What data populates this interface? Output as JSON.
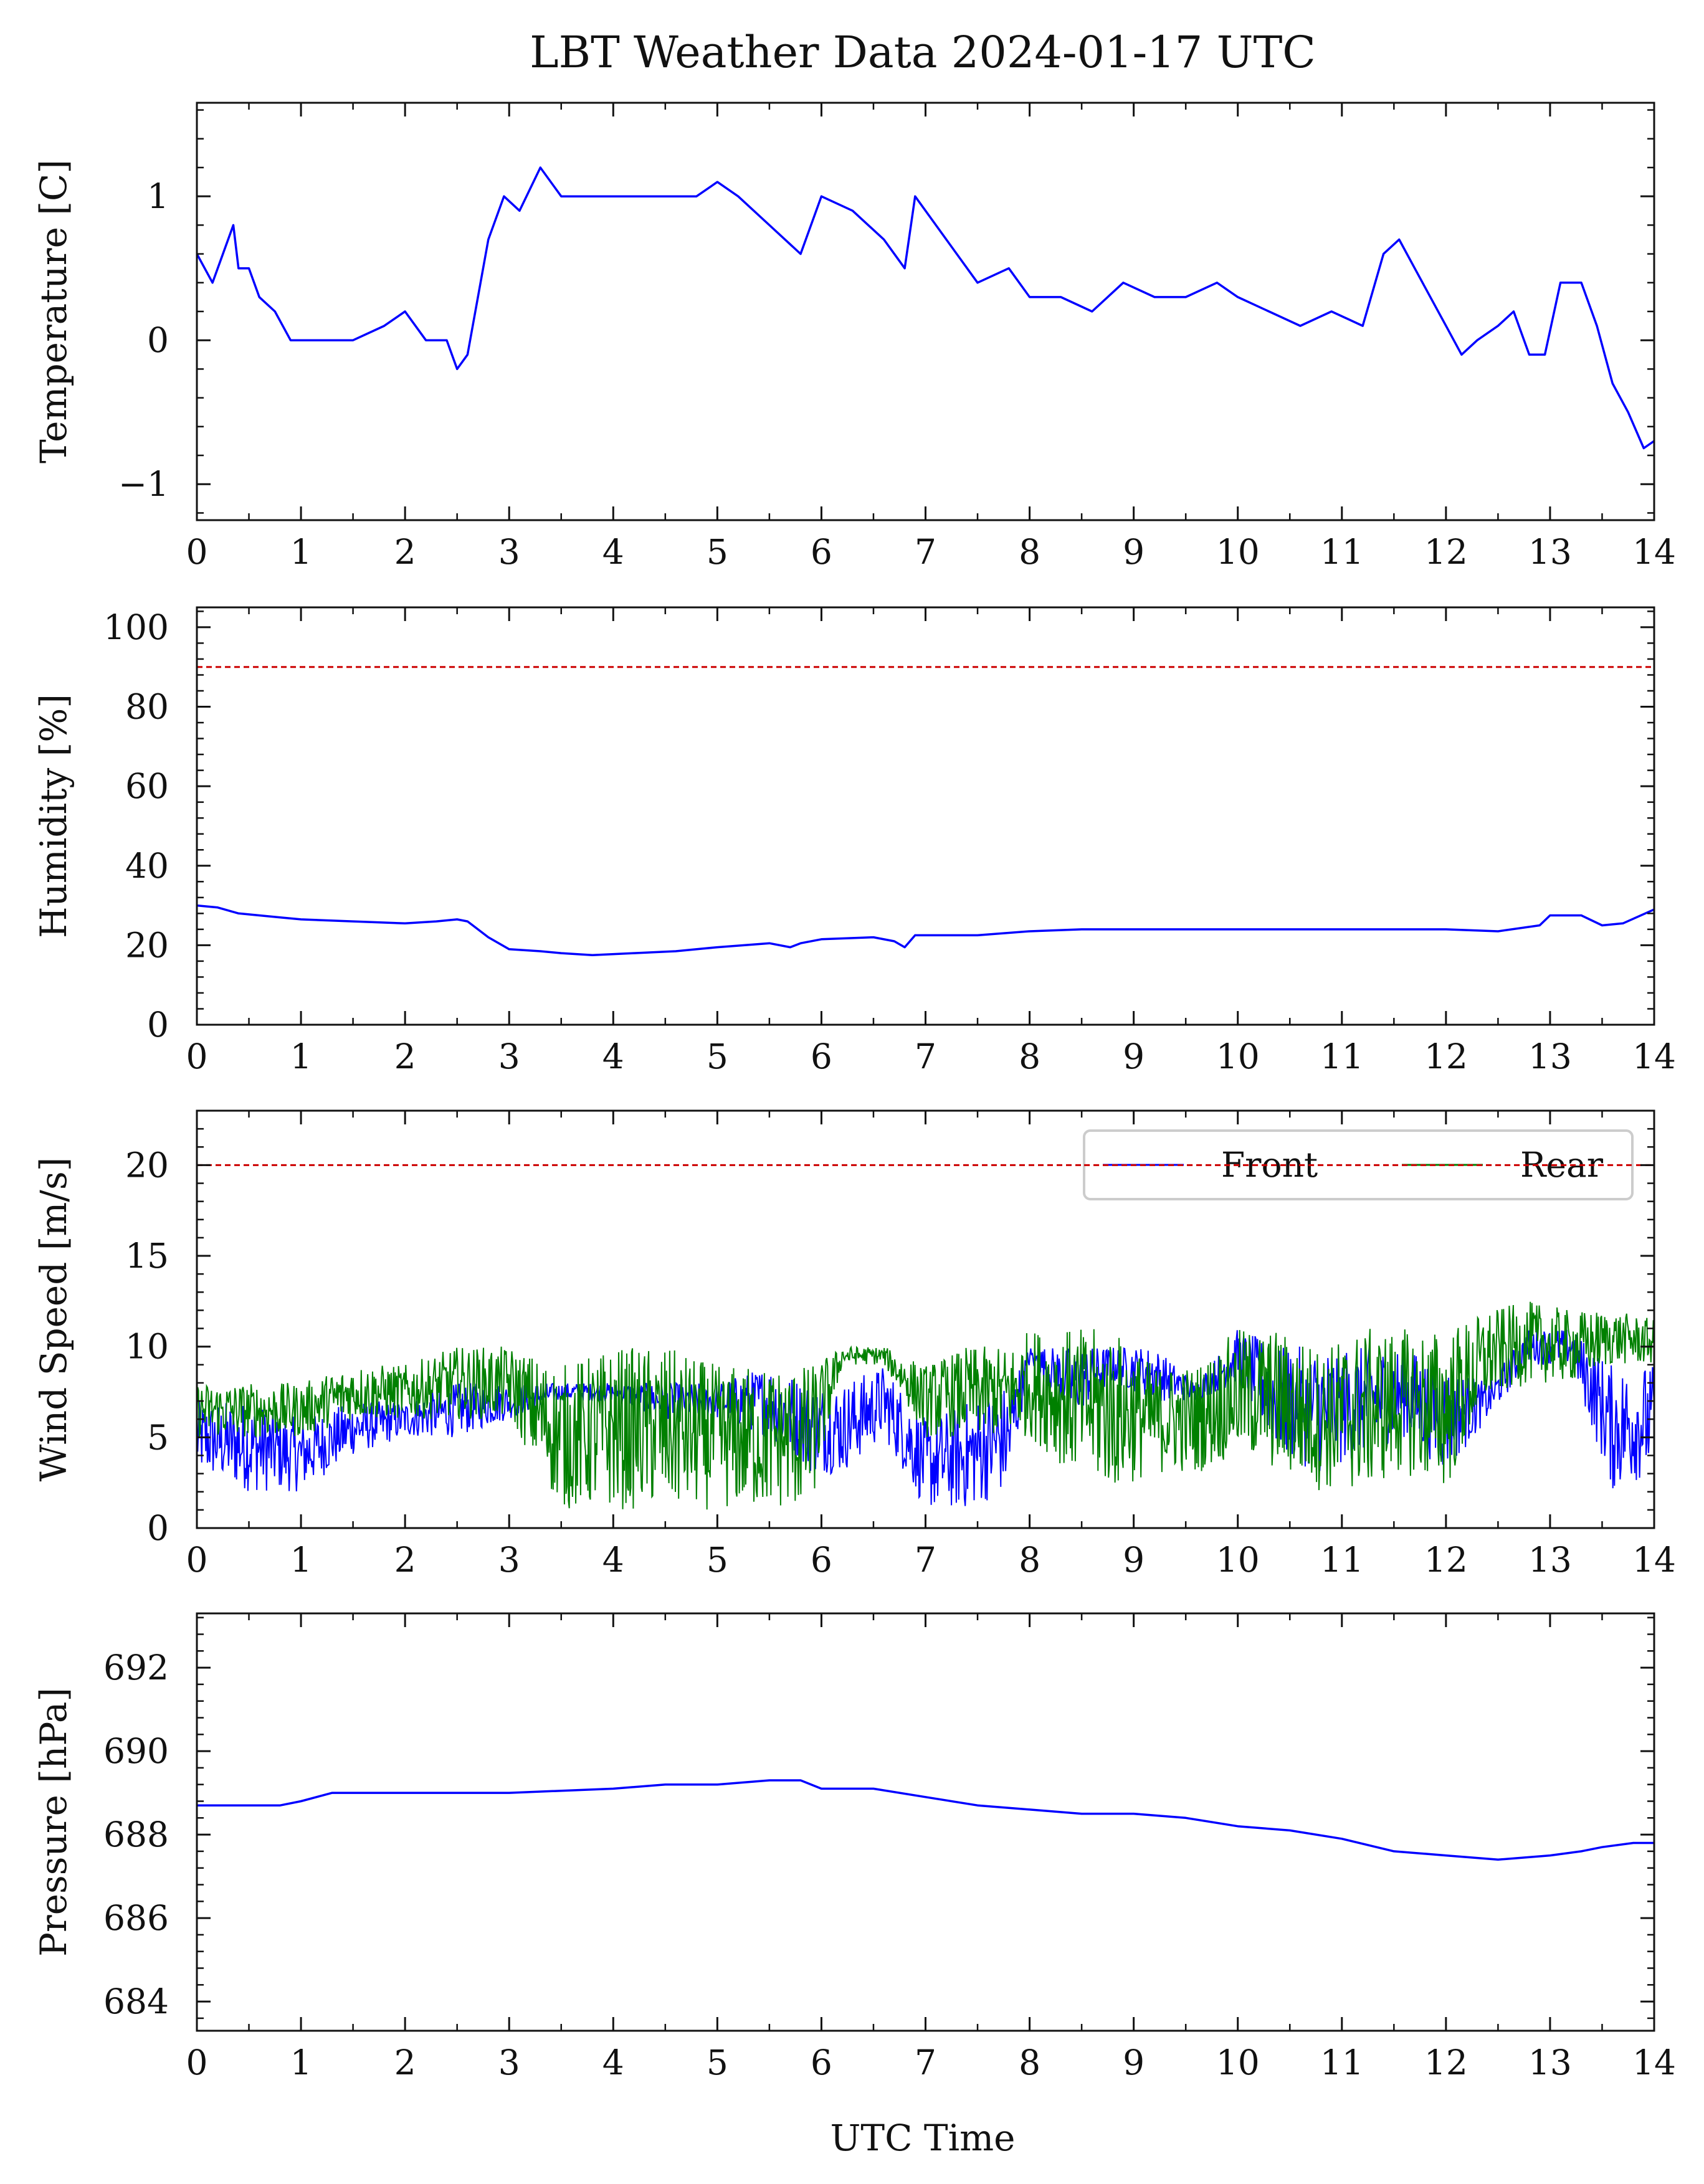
{
  "title": "LBT Weather Data 2024-01-17 UTC",
  "xlabel": "UTC Time",
  "colors": {
    "front": "#0000ff",
    "rear": "#008000",
    "threshold": "#cc0000",
    "axis": "#111111"
  },
  "chart_data": [
    {
      "type": "line",
      "ylabel": "Temperature [C]",
      "xlim": [
        0,
        14
      ],
      "ylim": [
        -1.25,
        1.65
      ],
      "x_ticks": [
        0,
        1,
        2,
        3,
        4,
        5,
        6,
        7,
        8,
        9,
        10,
        11,
        12,
        13,
        14
      ],
      "y_ticks": [
        -1,
        0,
        1
      ],
      "y_tick_labels": [
        "−1",
        "0",
        "1"
      ],
      "series": [
        {
          "color": "#0000ff",
          "x": [
            0,
            0.15,
            0.25,
            0.35,
            0.4,
            0.5,
            0.6,
            0.75,
            0.9,
            1.0,
            1.2,
            1.5,
            1.8,
            2.0,
            2.2,
            2.4,
            2.5,
            2.6,
            2.7,
            2.8,
            2.95,
            3.1,
            3.3,
            3.5,
            3.8,
            4.1,
            4.5,
            4.8,
            5.0,
            5.2,
            5.5,
            5.8,
            6.0,
            6.3,
            6.6,
            6.8,
            6.9,
            7.1,
            7.3,
            7.5,
            7.8,
            8.0,
            8.3,
            8.6,
            8.9,
            9.2,
            9.5,
            9.8,
            10.0,
            10.3,
            10.6,
            10.9,
            11.2,
            11.4,
            11.55,
            11.7,
            11.85,
            12.0,
            12.15,
            12.3,
            12.5,
            12.65,
            12.8,
            12.95,
            13.1,
            13.3,
            13.45,
            13.6,
            13.75,
            13.9,
            14.0
          ],
          "y": [
            0.6,
            0.4,
            0.6,
            0.8,
            0.5,
            0.5,
            0.3,
            0.2,
            0.0,
            0.0,
            0.0,
            0.0,
            0.1,
            0.2,
            0.0,
            0.0,
            -0.2,
            -0.1,
            0.3,
            0.7,
            1.0,
            0.9,
            1.2,
            1.0,
            1.0,
            1.0,
            1.0,
            1.0,
            1.1,
            1.0,
            0.8,
            0.6,
            1.0,
            0.9,
            0.7,
            0.5,
            1.0,
            0.8,
            0.6,
            0.4,
            0.5,
            0.3,
            0.3,
            0.2,
            0.4,
            0.3,
            0.3,
            0.4,
            0.3,
            0.2,
            0.1,
            0.2,
            0.1,
            0.6,
            0.7,
            0.5,
            0.3,
            0.1,
            -0.1,
            0.0,
            0.1,
            0.2,
            -0.1,
            -0.1,
            0.4,
            0.4,
            0.1,
            -0.3,
            -0.5,
            -0.75,
            -0.7
          ]
        }
      ]
    },
    {
      "type": "line",
      "ylabel": "Humidity [%]",
      "xlim": [
        0,
        14
      ],
      "ylim": [
        0,
        105
      ],
      "x_ticks": [
        0,
        1,
        2,
        3,
        4,
        5,
        6,
        7,
        8,
        9,
        10,
        11,
        12,
        13,
        14
      ],
      "y_ticks": [
        0,
        20,
        40,
        60,
        80,
        100
      ],
      "y_tick_labels": [
        "0",
        "20",
        "40",
        "60",
        "80",
        "100"
      ],
      "threshold": 90,
      "series": [
        {
          "color": "#0000ff",
          "x": [
            0,
            0.2,
            0.4,
            0.6,
            0.8,
            1.0,
            1.5,
            2.0,
            2.3,
            2.5,
            2.6,
            2.8,
            3.0,
            3.3,
            3.5,
            3.8,
            4.2,
            4.6,
            5.0,
            5.5,
            5.7,
            5.8,
            6.0,
            6.5,
            6.7,
            6.8,
            6.9,
            7.5,
            8.0,
            8.5,
            9.0,
            9.5,
            10.0,
            10.5,
            11.0,
            11.5,
            12.0,
            12.5,
            12.9,
            13.0,
            13.3,
            13.5,
            13.7,
            14.0
          ],
          "y": [
            30,
            29.5,
            28,
            27.5,
            27,
            26.5,
            26,
            25.5,
            26,
            26.5,
            26,
            22,
            19,
            18.5,
            18,
            17.5,
            18,
            18.5,
            19.5,
            20.5,
            19.5,
            20.5,
            21.5,
            22,
            21,
            19.5,
            22.5,
            22.5,
            23.5,
            24,
            24,
            24,
            24,
            24,
            24,
            24,
            24,
            23.5,
            25,
            27.5,
            27.5,
            25,
            25.5,
            29
          ]
        }
      ]
    },
    {
      "type": "line",
      "ylabel": "Wind Speed [m/s]",
      "xlim": [
        0,
        14
      ],
      "ylim": [
        0,
        23
      ],
      "x_ticks": [
        0,
        1,
        2,
        3,
        4,
        5,
        6,
        7,
        8,
        9,
        10,
        11,
        12,
        13,
        14
      ],
      "y_ticks": [
        0,
        5,
        10,
        15,
        20
      ],
      "y_tick_labels": [
        "0",
        "5",
        "10",
        "15",
        "20"
      ],
      "threshold": 20,
      "legend": "top-right",
      "series": [
        {
          "name": "Front",
          "color": "#0000ff",
          "x": [
            0,
            0.5,
            1.0,
            1.5,
            2.0,
            2.5,
            3.0,
            3.5,
            4.0,
            4.5,
            5.0,
            5.5,
            5.9,
            6.2,
            6.6,
            7.0,
            7.4,
            7.8,
            8.0,
            8.4,
            8.8,
            9.2,
            9.6,
            10.0,
            10.4,
            10.8,
            11.2,
            11.6,
            12.0,
            12.4,
            12.8,
            13.2,
            13.6,
            14.0
          ],
          "lo": [
            3,
            2,
            2,
            4,
            5,
            5,
            6,
            7,
            7,
            6,
            6,
            5,
            3,
            3,
            5,
            1,
            1,
            2,
            9,
            6,
            8,
            7,
            7,
            8,
            4,
            3,
            4,
            5,
            3,
            6,
            9,
            9,
            2,
            3
          ],
          "hi": [
            7,
            7,
            6,
            7,
            7,
            8,
            8,
            8,
            8,
            8,
            8,
            9,
            8,
            8,
            9,
            6,
            7,
            8,
            10,
            10,
            10,
            10,
            8,
            11,
            10,
            10,
            10,
            10,
            9,
            8,
            11,
            11,
            9,
            9
          ]
        },
        {
          "name": "Rear",
          "color": "#008000",
          "x": [
            0,
            0.5,
            1.0,
            1.5,
            2.0,
            2.5,
            3.0,
            3.5,
            4.0,
            4.5,
            5.0,
            5.5,
            5.9,
            6.2,
            6.6,
            7.0,
            7.4,
            7.8,
            8.0,
            8.4,
            8.8,
            9.2,
            9.6,
            10.0,
            10.4,
            10.8,
            11.2,
            11.6,
            12.0,
            12.4,
            12.8,
            13.2,
            13.6,
            14.0
          ],
          "lo": [
            5,
            5,
            5,
            6,
            6,
            6,
            6,
            1,
            1,
            1,
            1,
            1,
            1,
            9,
            9,
            5,
            5,
            5,
            5,
            3,
            2,
            3,
            3,
            4,
            3,
            2,
            2,
            3,
            2,
            7,
            8,
            8,
            9,
            9
          ],
          "hi": [
            8,
            8,
            8,
            9,
            9,
            10,
            10,
            9,
            10,
            10,
            9,
            9,
            9,
            10,
            10,
            9,
            10,
            10,
            11,
            11,
            11,
            9,
            9,
            11,
            11,
            10,
            11,
            11,
            11,
            12,
            12.5,
            12,
            12,
            11.5
          ]
        }
      ]
    },
    {
      "type": "line",
      "ylabel": "Pressure [hPa]",
      "xlim": [
        0,
        14
      ],
      "ylim": [
        683.3,
        693.3
      ],
      "x_ticks": [
        0,
        1,
        2,
        3,
        4,
        5,
        6,
        7,
        8,
        9,
        10,
        11,
        12,
        13,
        14
      ],
      "y_ticks": [
        684,
        686,
        688,
        690,
        692
      ],
      "y_tick_labels": [
        "684",
        "686",
        "688",
        "690",
        "692"
      ],
      "series": [
        {
          "color": "#0000ff",
          "x": [
            0,
            0.5,
            0.8,
            1.0,
            1.3,
            2.0,
            3.0,
            4.0,
            4.5,
            5.0,
            5.5,
            5.8,
            6.0,
            6.5,
            7.0,
            7.5,
            8.0,
            8.5,
            9.0,
            9.5,
            10.0,
            10.5,
            11.0,
            11.5,
            12.0,
            12.5,
            13.0,
            13.3,
            13.5,
            13.8,
            14.0
          ],
          "y": [
            688.7,
            688.7,
            688.7,
            688.8,
            689.0,
            689.0,
            689.0,
            689.1,
            689.2,
            689.2,
            689.3,
            689.3,
            689.1,
            689.1,
            688.9,
            688.7,
            688.6,
            688.5,
            688.5,
            688.4,
            688.2,
            688.1,
            687.9,
            687.6,
            687.5,
            687.4,
            687.5,
            687.6,
            687.7,
            687.8,
            687.8
          ]
        }
      ]
    }
  ]
}
